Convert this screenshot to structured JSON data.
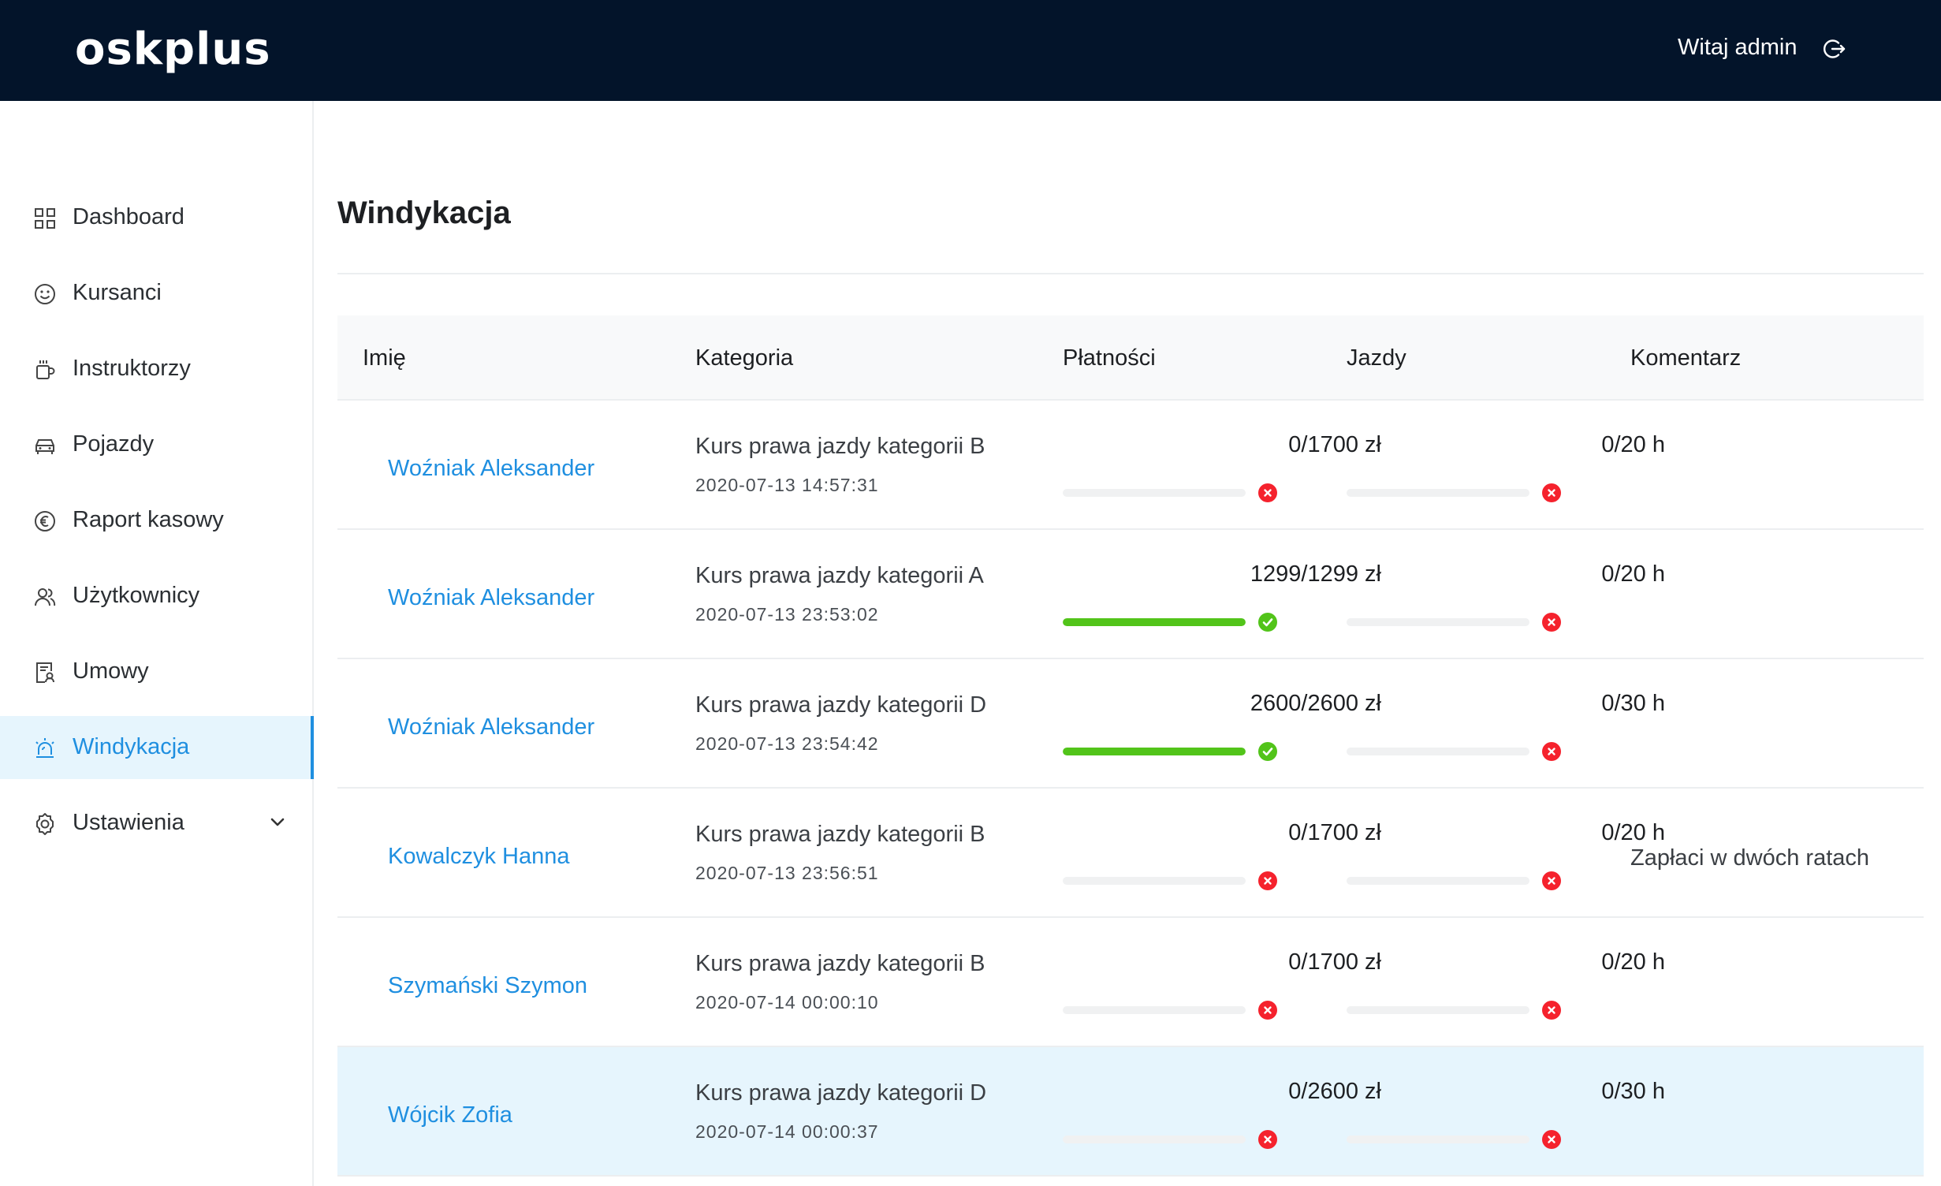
{
  "header": {
    "logo": "oskplus",
    "greeting": "Witaj admin"
  },
  "sidebar": {
    "items": [
      {
        "label": "Dashboard",
        "icon": "grid-icon"
      },
      {
        "label": "Kursanci",
        "icon": "smile-icon"
      },
      {
        "label": "Instruktorzy",
        "icon": "coffee-icon"
      },
      {
        "label": "Pojazdy",
        "icon": "car-icon"
      },
      {
        "label": "Raport kasowy",
        "icon": "euro-icon"
      },
      {
        "label": "Użytkownicy",
        "icon": "team-icon"
      },
      {
        "label": "Umowy",
        "icon": "contract-icon"
      },
      {
        "label": "Windykacja",
        "icon": "alert-icon",
        "active": true
      },
      {
        "label": "Ustawienia",
        "icon": "settings-icon"
      }
    ]
  },
  "page": {
    "title": "Windykacja"
  },
  "table": {
    "headers": [
      "Imię",
      "Kategoria",
      "Płatności",
      "Jazdy",
      "Komentarz"
    ],
    "rows": [
      {
        "name": "Woźniak Aleksander",
        "category": "Kurs prawa jazdy kategorii B",
        "date": "2020-07-13 14:57:31",
        "payments": "0/1700 zł",
        "payments_progress": 0,
        "payments_ok": false,
        "rides": "0/20 h",
        "rides_progress": 0,
        "rides_ok": false,
        "comment": ""
      },
      {
        "name": "Woźniak Aleksander",
        "category": "Kurs prawa jazdy kategorii A",
        "date": "2020-07-13 23:53:02",
        "payments": "1299/1299 zł",
        "payments_progress": 1,
        "payments_ok": true,
        "rides": "0/20 h",
        "rides_progress": 0,
        "rides_ok": false,
        "comment": ""
      },
      {
        "name": "Woźniak Aleksander",
        "category": "Kurs prawa jazdy kategorii D",
        "date": "2020-07-13 23:54:42",
        "payments": "2600/2600 zł",
        "payments_progress": 1,
        "payments_ok": true,
        "rides": "0/30 h",
        "rides_progress": 0,
        "rides_ok": false,
        "comment": ""
      },
      {
        "name": "Kowalczyk Hanna",
        "category": "Kurs prawa jazdy kategorii B",
        "date": "2020-07-13 23:56:51",
        "payments": "0/1700 zł",
        "payments_progress": 0,
        "payments_ok": false,
        "rides": "0/20 h",
        "rides_progress": 0,
        "rides_ok": false,
        "comment": "Zapłaci w dwóch ratach"
      },
      {
        "name": "Szymański Szymon",
        "category": "Kurs prawa jazdy kategorii B",
        "date": "2020-07-14 00:00:10",
        "payments": "0/1700 zł",
        "payments_progress": 0,
        "payments_ok": false,
        "rides": "0/20 h",
        "rides_progress": 0,
        "rides_ok": false,
        "comment": ""
      },
      {
        "name": "Wójcik Zofia",
        "category": "Kurs prawa jazdy kategorii D",
        "date": "2020-07-14 00:00:37",
        "payments": "0/2600 zł",
        "payments_progress": 0,
        "payments_ok": false,
        "rides": "0/30 h",
        "rides_progress": 0,
        "rides_ok": false,
        "comment": "",
        "highlighted": true
      }
    ]
  },
  "colors": {
    "header_bg": "#03142a",
    "accent": "#1f8fe0",
    "success": "#52c41a",
    "error": "#f5222d"
  }
}
